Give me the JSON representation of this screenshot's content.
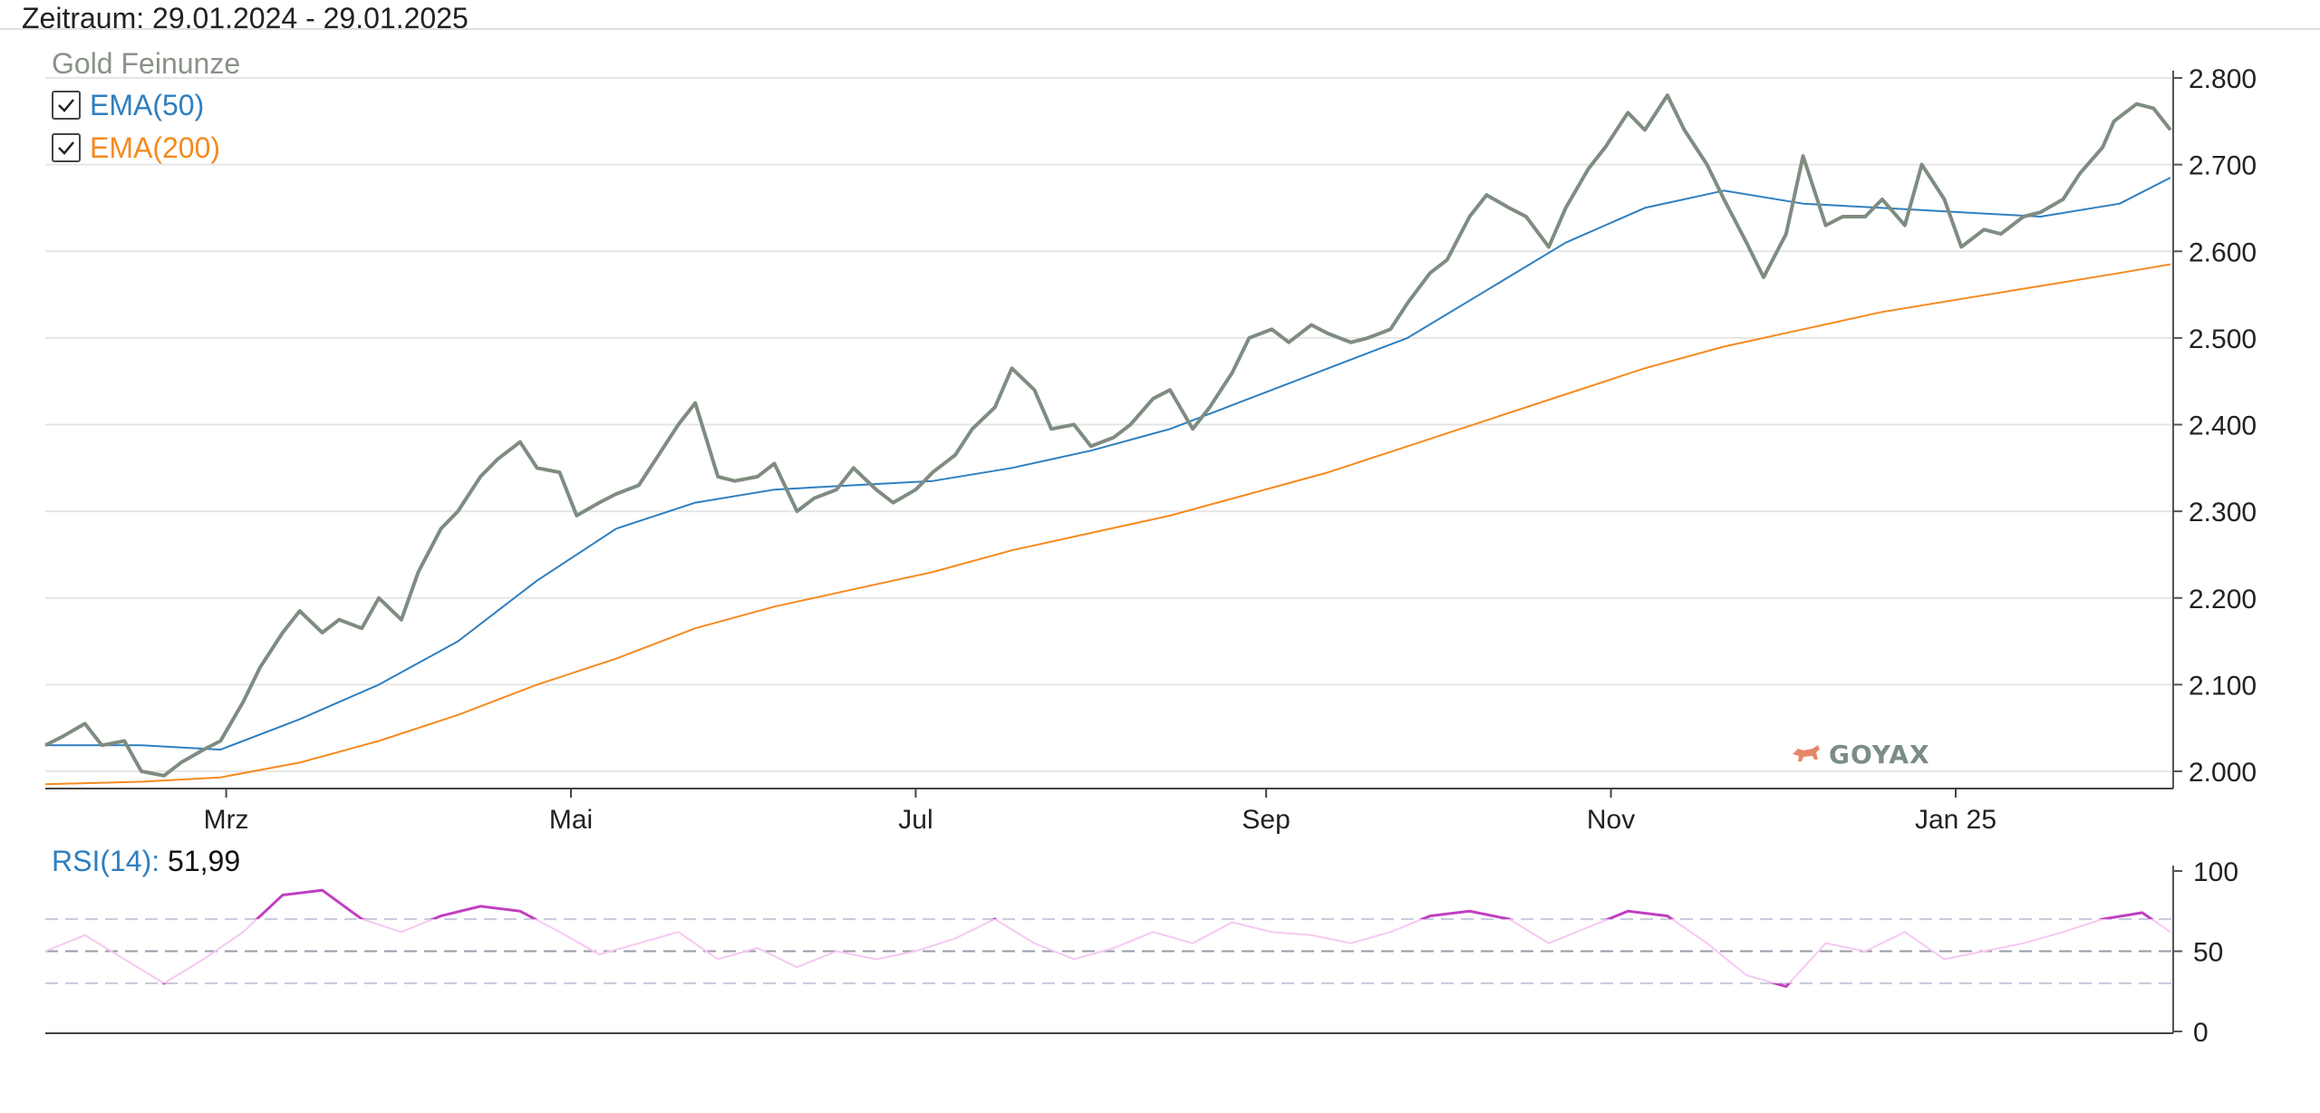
{
  "page": {
    "title": "Zeitraum: 29.01.2024 - 29.01.2025",
    "logo_text": "GOYAX"
  },
  "legend": {
    "title": "Gold Feinunze",
    "items": [
      {
        "label": "EMA(50)",
        "checked": true,
        "color": "#2f7fbf"
      },
      {
        "label": "EMA(200)",
        "checked": true,
        "color": "#f58a20"
      }
    ]
  },
  "rsi": {
    "label": "RSI(14):",
    "value": "51,99"
  },
  "chart_data": [
    {
      "type": "line",
      "x_tick_labels": [
        "Mrz",
        "Mai",
        "Jul",
        "Sep",
        "Nov",
        "Jan 25"
      ],
      "y_tick_labels": [
        "2.000",
        "2.100",
        "2.200",
        "2.300",
        "2.400",
        "2.500",
        "2.600",
        "2.700",
        "2.800"
      ],
      "ylim": [
        1980,
        2820
      ],
      "grid": true,
      "legend_position": "top-left",
      "series": [
        {
          "name": "Gold Feinunze",
          "color": "#7f8c80",
          "points": [
            [
              "2024-01-29",
              2030
            ],
            [
              "2024-02-01",
              2040
            ],
            [
              "2024-02-05",
              2055
            ],
            [
              "2024-02-08",
              2030
            ],
            [
              "2024-02-12",
              2035
            ],
            [
              "2024-02-15",
              2000
            ],
            [
              "2024-02-19",
              1995
            ],
            [
              "2024-02-22",
              2010
            ],
            [
              "2024-02-26",
              2025
            ],
            [
              "2024-02-29",
              2035
            ],
            [
              "2024-03-04",
              2080
            ],
            [
              "2024-03-07",
              2120
            ],
            [
              "2024-03-11",
              2160
            ],
            [
              "2024-03-14",
              2185
            ],
            [
              "2024-03-18",
              2160
            ],
            [
              "2024-03-21",
              2175
            ],
            [
              "2024-03-25",
              2165
            ],
            [
              "2024-03-28",
              2200
            ],
            [
              "2024-04-01",
              2175
            ],
            [
              "2024-04-04",
              2230
            ],
            [
              "2024-04-08",
              2280
            ],
            [
              "2024-04-11",
              2300
            ],
            [
              "2024-04-15",
              2340
            ],
            [
              "2024-04-18",
              2360
            ],
            [
              "2024-04-22",
              2380
            ],
            [
              "2024-04-25",
              2350
            ],
            [
              "2024-04-29",
              2345
            ],
            [
              "2024-05-02",
              2295
            ],
            [
              "2024-05-06",
              2310
            ],
            [
              "2024-05-09",
              2320
            ],
            [
              "2024-05-13",
              2330
            ],
            [
              "2024-05-16",
              2360
            ],
            [
              "2024-05-20",
              2400
            ],
            [
              "2024-05-23",
              2425
            ],
            [
              "2024-05-27",
              2340
            ],
            [
              "2024-05-30",
              2335
            ],
            [
              "2024-06-03",
              2340
            ],
            [
              "2024-06-06",
              2355
            ],
            [
              "2024-06-10",
              2300
            ],
            [
              "2024-06-13",
              2315
            ],
            [
              "2024-06-17",
              2325
            ],
            [
              "2024-06-20",
              2350
            ],
            [
              "2024-06-24",
              2325
            ],
            [
              "2024-06-27",
              2310
            ],
            [
              "2024-07-01",
              2325
            ],
            [
              "2024-07-04",
              2345
            ],
            [
              "2024-07-08",
              2365
            ],
            [
              "2024-07-11",
              2395
            ],
            [
              "2024-07-15",
              2420
            ],
            [
              "2024-07-18",
              2465
            ],
            [
              "2024-07-22",
              2440
            ],
            [
              "2024-07-25",
              2395
            ],
            [
              "2024-07-29",
              2400
            ],
            [
              "2024-08-01",
              2375
            ],
            [
              "2024-08-05",
              2385
            ],
            [
              "2024-08-08",
              2400
            ],
            [
              "2024-08-12",
              2430
            ],
            [
              "2024-08-15",
              2440
            ],
            [
              "2024-08-19",
              2395
            ],
            [
              "2024-08-22",
              2420
            ],
            [
              "2024-08-26",
              2460
            ],
            [
              "2024-08-29",
              2500
            ],
            [
              "2024-09-02",
              2510
            ],
            [
              "2024-09-05",
              2495
            ],
            [
              "2024-09-09",
              2515
            ],
            [
              "2024-09-12",
              2505
            ],
            [
              "2024-09-16",
              2495
            ],
            [
              "2024-09-19",
              2500
            ],
            [
              "2024-09-23",
              2510
            ],
            [
              "2024-09-26",
              2540
            ],
            [
              "2024-09-30",
              2575
            ],
            [
              "2024-10-03",
              2590
            ],
            [
              "2024-10-07",
              2640
            ],
            [
              "2024-10-10",
              2665
            ],
            [
              "2024-10-14",
              2650
            ],
            [
              "2024-10-17",
              2640
            ],
            [
              "2024-10-21",
              2605
            ],
            [
              "2024-10-24",
              2650
            ],
            [
              "2024-10-28",
              2695
            ],
            [
              "2024-10-31",
              2720
            ],
            [
              "2024-11-04",
              2760
            ],
            [
              "2024-11-07",
              2740
            ],
            [
              "2024-11-11",
              2780
            ],
            [
              "2024-11-14",
              2740
            ],
            [
              "2024-11-18",
              2700
            ],
            [
              "2024-11-21",
              2660
            ],
            [
              "2024-11-25",
              2610
            ],
            [
              "2024-11-28",
              2570
            ],
            [
              "2024-12-02",
              2620
            ],
            [
              "2024-12-05",
              2710
            ],
            [
              "2024-12-09",
              2630
            ],
            [
              "2024-12-12",
              2640
            ],
            [
              "2024-12-16",
              2640
            ],
            [
              "2024-12-19",
              2660
            ],
            [
              "2024-12-23",
              2630
            ],
            [
              "2024-12-26",
              2700
            ],
            [
              "2024-12-30",
              2660
            ],
            [
              "2025-01-02",
              2605
            ],
            [
              "2025-01-06",
              2625
            ],
            [
              "2025-01-09",
              2620
            ],
            [
              "2025-01-13",
              2640
            ],
            [
              "2025-01-16",
              2645
            ],
            [
              "2025-01-20",
              2660
            ],
            [
              "2025-01-23",
              2690
            ],
            [
              "2025-01-27",
              2720
            ],
            [
              "2025-01-29",
              2750
            ],
            [
              "2025-02-02",
              2770
            ],
            [
              "2025-02-05",
              2765
            ],
            [
              "2025-02-08",
              2740
            ]
          ]
        },
        {
          "name": "EMA(50)",
          "color": "#2f7fbf",
          "points": [
            [
              "2024-01-29",
              2030
            ],
            [
              "2024-02-15",
              2030
            ],
            [
              "2024-02-29",
              2025
            ],
            [
              "2024-03-14",
              2060
            ],
            [
              "2024-03-28",
              2100
            ],
            [
              "2024-04-11",
              2150
            ],
            [
              "2024-04-25",
              2220
            ],
            [
              "2024-05-09",
              2280
            ],
            [
              "2024-05-23",
              2310
            ],
            [
              "2024-06-06",
              2325
            ],
            [
              "2024-06-20",
              2330
            ],
            [
              "2024-07-04",
              2335
            ],
            [
              "2024-07-18",
              2350
            ],
            [
              "2024-08-01",
              2370
            ],
            [
              "2024-08-15",
              2395
            ],
            [
              "2024-08-29",
              2430
            ],
            [
              "2024-09-12",
              2465
            ],
            [
              "2024-09-26",
              2500
            ],
            [
              "2024-10-10",
              2555
            ],
            [
              "2024-10-24",
              2610
            ],
            [
              "2024-11-07",
              2650
            ],
            [
              "2024-11-21",
              2670
            ],
            [
              "2024-12-05",
              2655
            ],
            [
              "2024-12-19",
              2650
            ],
            [
              "2025-01-02",
              2645
            ],
            [
              "2025-01-16",
              2640
            ],
            [
              "2025-01-30",
              2655
            ],
            [
              "2025-02-08",
              2685
            ]
          ]
        },
        {
          "name": "EMA(200)",
          "color": "#f58a20",
          "points": [
            [
              "2024-01-29",
              1985
            ],
            [
              "2024-02-15",
              1988
            ],
            [
              "2024-02-29",
              1993
            ],
            [
              "2024-03-14",
              2010
            ],
            [
              "2024-03-28",
              2035
            ],
            [
              "2024-04-11",
              2065
            ],
            [
              "2024-04-25",
              2100
            ],
            [
              "2024-05-09",
              2130
            ],
            [
              "2024-05-23",
              2165
            ],
            [
              "2024-06-06",
              2190
            ],
            [
              "2024-06-20",
              2210
            ],
            [
              "2024-07-04",
              2230
            ],
            [
              "2024-07-18",
              2255
            ],
            [
              "2024-08-01",
              2275
            ],
            [
              "2024-08-15",
              2295
            ],
            [
              "2024-08-29",
              2320
            ],
            [
              "2024-09-12",
              2345
            ],
            [
              "2024-09-26",
              2375
            ],
            [
              "2024-10-10",
              2405
            ],
            [
              "2024-10-24",
              2435
            ],
            [
              "2024-11-07",
              2465
            ],
            [
              "2024-11-21",
              2490
            ],
            [
              "2024-12-05",
              2510
            ],
            [
              "2024-12-19",
              2530
            ],
            [
              "2025-01-02",
              2545
            ],
            [
              "2025-01-16",
              2560
            ],
            [
              "2025-01-30",
              2575
            ],
            [
              "2025-02-08",
              2585
            ]
          ]
        }
      ]
    },
    {
      "type": "line",
      "y_tick_labels": [
        "0",
        "50",
        "100"
      ],
      "ylim": [
        0,
        100
      ],
      "guide_lines": [
        30,
        50,
        70
      ],
      "series": [
        {
          "name": "RSI(14)",
          "color": "#c040c0",
          "points": [
            [
              "2024-01-29",
              50
            ],
            [
              "2024-02-05",
              60
            ],
            [
              "2024-02-12",
              45
            ],
            [
              "2024-02-19",
              30
            ],
            [
              "2024-02-26",
              45
            ],
            [
              "2024-03-04",
              62
            ],
            [
              "2024-03-11",
              85
            ],
            [
              "2024-03-18",
              88
            ],
            [
              "2024-03-25",
              70
            ],
            [
              "2024-04-01",
              62
            ],
            [
              "2024-04-08",
              72
            ],
            [
              "2024-04-15",
              78
            ],
            [
              "2024-04-22",
              75
            ],
            [
              "2024-04-29",
              62
            ],
            [
              "2024-05-06",
              48
            ],
            [
              "2024-05-13",
              55
            ],
            [
              "2024-05-20",
              62
            ],
            [
              "2024-05-27",
              45
            ],
            [
              "2024-06-03",
              52
            ],
            [
              "2024-06-10",
              40
            ],
            [
              "2024-06-17",
              50
            ],
            [
              "2024-06-24",
              45
            ],
            [
              "2024-07-01",
              50
            ],
            [
              "2024-07-08",
              58
            ],
            [
              "2024-07-15",
              70
            ],
            [
              "2024-07-22",
              55
            ],
            [
              "2024-07-29",
              45
            ],
            [
              "2024-08-05",
              52
            ],
            [
              "2024-08-12",
              62
            ],
            [
              "2024-08-19",
              55
            ],
            [
              "2024-08-26",
              68
            ],
            [
              "2024-09-02",
              62
            ],
            [
              "2024-09-09",
              60
            ],
            [
              "2024-09-16",
              55
            ],
            [
              "2024-09-23",
              62
            ],
            [
              "2024-09-30",
              72
            ],
            [
              "2024-10-07",
              75
            ],
            [
              "2024-10-14",
              70
            ],
            [
              "2024-10-21",
              55
            ],
            [
              "2024-10-28",
              65
            ],
            [
              "2024-11-04",
              75
            ],
            [
              "2024-11-11",
              72
            ],
            [
              "2024-11-18",
              55
            ],
            [
              "2024-11-25",
              35
            ],
            [
              "2024-12-02",
              28
            ],
            [
              "2024-12-09",
              55
            ],
            [
              "2024-12-16",
              50
            ],
            [
              "2024-12-23",
              62
            ],
            [
              "2024-12-30",
              45
            ],
            [
              "2025-01-06",
              50
            ],
            [
              "2025-01-13",
              55
            ],
            [
              "2025-01-20",
              62
            ],
            [
              "2025-01-27",
              70
            ],
            [
              "2025-02-03",
              74
            ],
            [
              "2025-02-08",
              62
            ]
          ]
        }
      ]
    }
  ]
}
